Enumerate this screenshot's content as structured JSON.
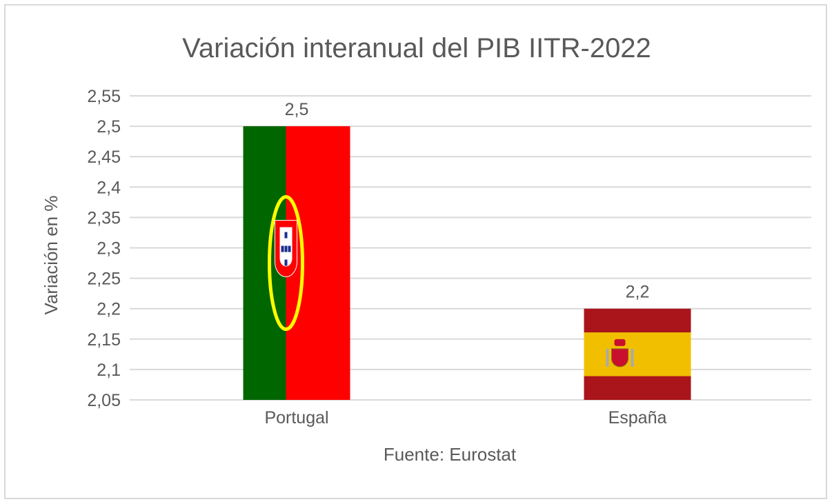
{
  "chart_data": {
    "type": "bar",
    "title": "Variación interanual del PIB IITR-2022",
    "xlabel": "Fuente: Eurostat",
    "ylabel": "Variación en %",
    "categories": [
      "Portugal",
      "España"
    ],
    "values": [
      2.5,
      2.2
    ],
    "data_labels": [
      "2,5",
      "2,2"
    ],
    "ylim": [
      2.05,
      2.55
    ],
    "yticks": [
      2.05,
      2.1,
      2.15,
      2.2,
      2.25,
      2.3,
      2.35,
      2.4,
      2.45,
      2.5,
      2.55
    ],
    "ytick_labels": [
      "2,05",
      "2,1",
      "2,15",
      "2,2",
      "2,25",
      "2,3",
      "2,35",
      "2,4",
      "2,45",
      "2,5",
      "2,55"
    ],
    "grid": true,
    "bar_fills": [
      "portugal-flag",
      "spain-flag"
    ],
    "colors": {
      "pt_green": "#006600",
      "pt_red": "#ff0000",
      "es_red": "#aa151b",
      "es_yellow": "#f1bf00",
      "grid": "#d9d9d9",
      "text": "#595959"
    }
  }
}
